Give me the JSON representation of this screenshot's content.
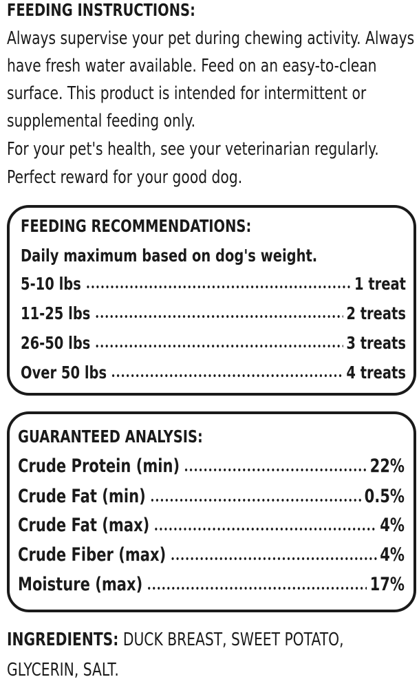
{
  "instructions": {
    "title": "FEEDING INSTRUCTIONS:",
    "lines": [
      "Always supervise your pet during chewing activity. Always",
      "have fresh water available. Feed on an easy-to-clean",
      "surface. This product is intended for intermittent or",
      "supplemental feeding only.",
      "For your pet's health, see your veterinarian regularly.",
      "Perfect reward for your good dog."
    ]
  },
  "recommendations": {
    "title": "FEEDING RECOMMENDATIONS:",
    "subtitle": "Daily maximum based on dog's weight.",
    "rows": [
      [
        "5-10 lbs",
        "1 treat"
      ],
      [
        "11-25 lbs",
        "2 treats"
      ],
      [
        "26-50 lbs",
        "3 treats"
      ],
      [
        "Over 50 lbs",
        "4 treats"
      ]
    ]
  },
  "analysis": {
    "title": "GUARANTEED ANALYSIS:",
    "rows": [
      [
        "Crude Protein (min)",
        "22%"
      ],
      [
        "Crude Fat (min)",
        "0.5%"
      ],
      [
        "Crude Fat (max)",
        "4%"
      ],
      [
        "Crude Fiber (max)",
        "4%"
      ],
      [
        "Moisture (max)",
        "17%"
      ]
    ]
  },
  "ingredients": {
    "label": "INGREDIENTS:",
    "lines": [
      "DUCK BREAST, SWEET POTATO,",
      "GLYCERIN, SALT."
    ]
  }
}
